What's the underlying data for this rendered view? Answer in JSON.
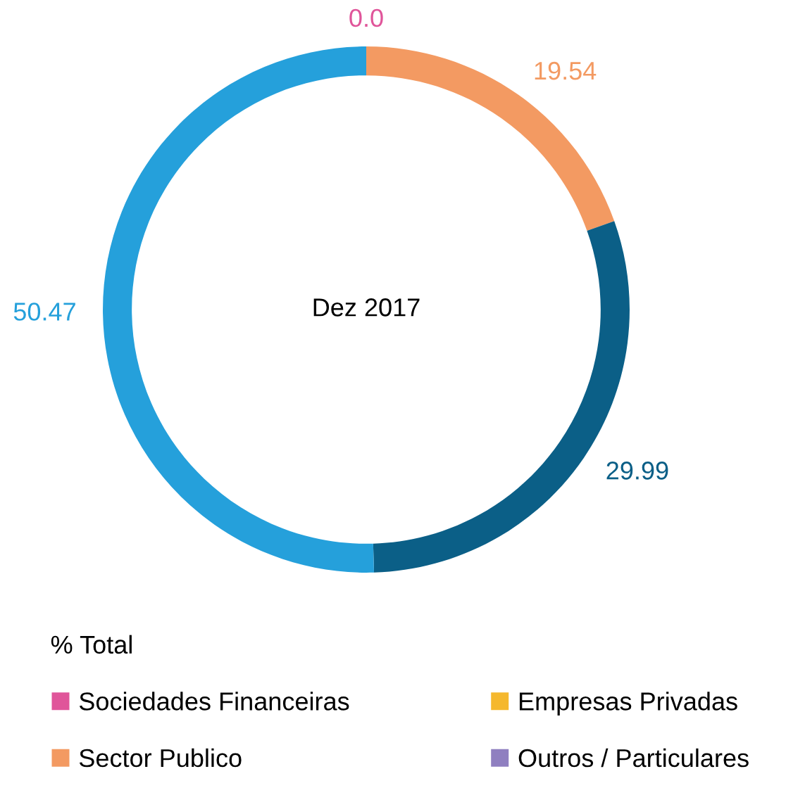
{
  "chart_data": {
    "type": "donut",
    "categories": [
      "Sociedades Financeiras",
      "Sector Publico",
      null,
      null,
      "Empresas Privadas",
      "Outros / Particulares"
    ],
    "values": [
      0.0,
      19.54,
      29.99,
      50.47,
      null,
      null
    ],
    "value_labels": [
      "0.0",
      "19.54",
      "29.99",
      "50.47",
      null,
      null
    ],
    "colors": [
      "#e0559a",
      "#f39a62",
      "#0b5f87",
      "#25a0db",
      "#f5b82e",
      "#8f7fc0"
    ],
    "annotations": [
      "Dez 2017"
    ],
    "legend_title": "% Total",
    "legend": "bottom"
  }
}
